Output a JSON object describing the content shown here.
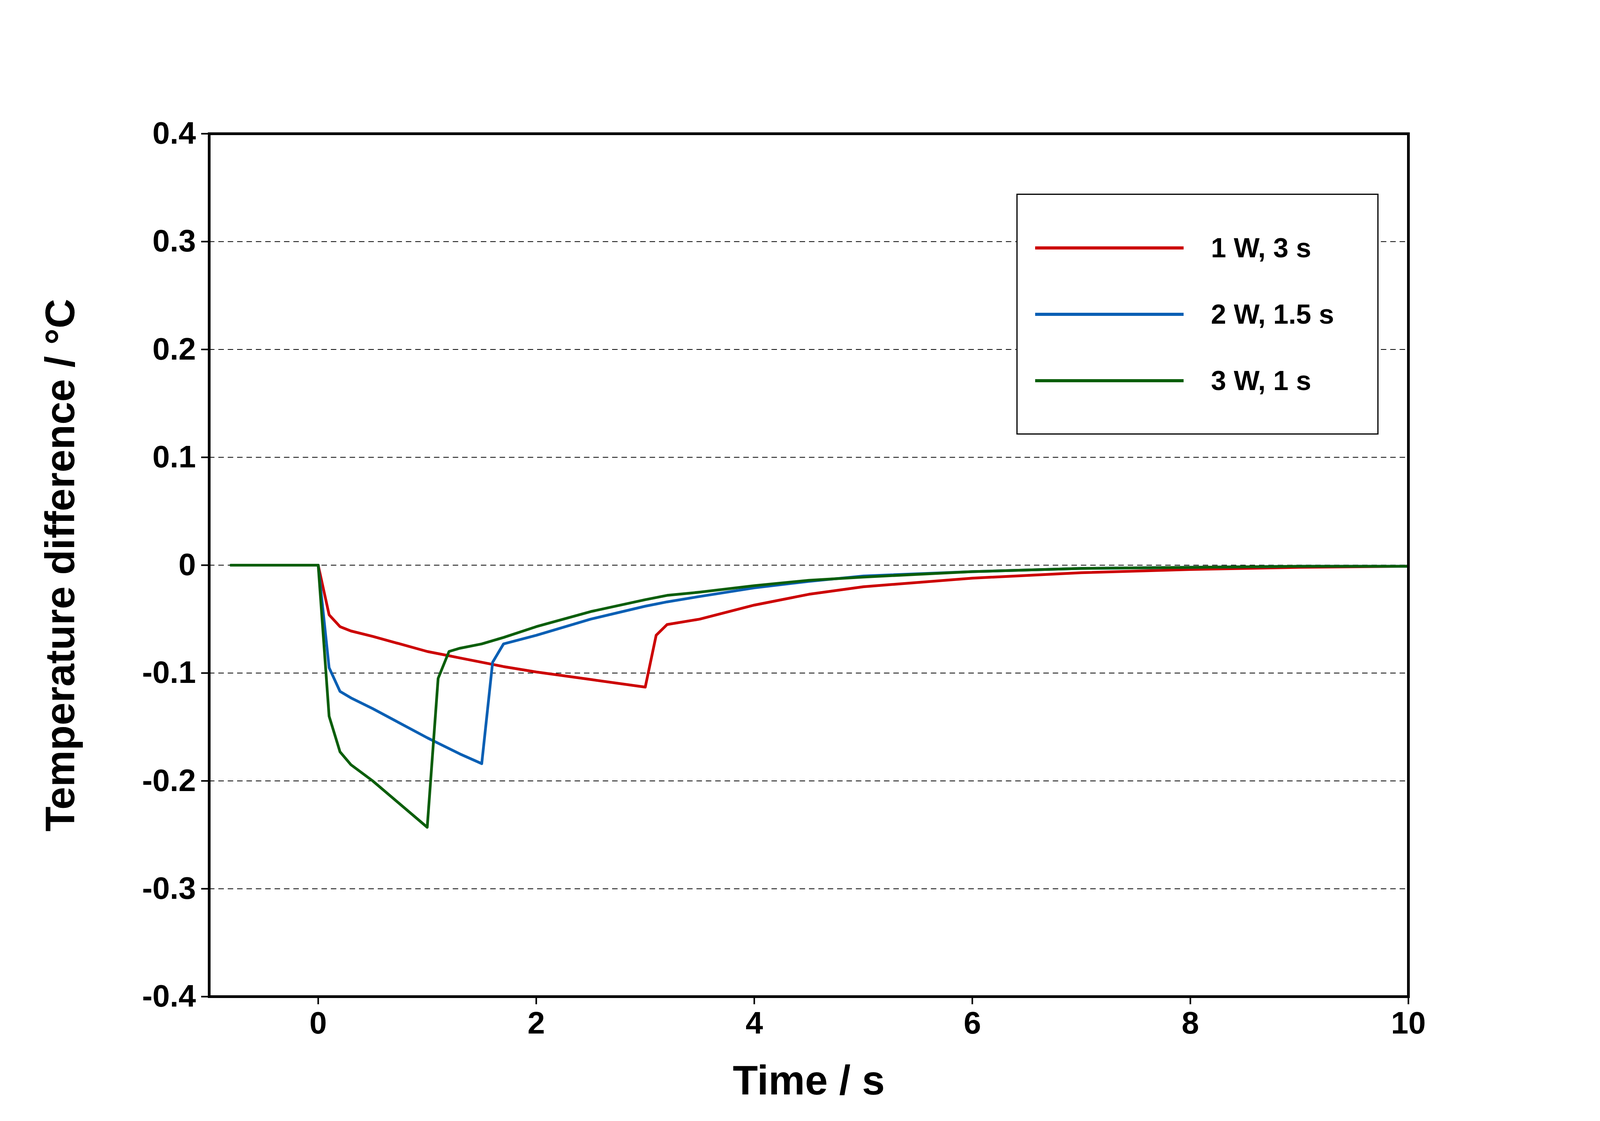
{
  "chart_data": {
    "type": "line",
    "xlabel": "Time / s",
    "ylabel": "Temperature difference / °C",
    "x": [
      -0.8,
      0,
      0.1,
      0.2,
      0.3,
      0.5,
      1,
      1.1,
      1.2,
      1.3,
      1.5,
      1.6,
      1.7,
      2,
      2.5,
      3,
      3.1,
      3.2,
      3.5,
      4,
      4.5,
      5,
      6,
      7,
      8,
      9,
      10
    ],
    "series": [
      {
        "name": "1 W, 3 s",
        "color": "#cc0000",
        "values": [
          0,
          0,
          -0.046,
          -0.057,
          -0.061,
          -0.066,
          -0.08,
          -0.082,
          -0.084,
          -0.086,
          -0.09,
          -0.092,
          -0.094,
          -0.099,
          -0.106,
          -0.113,
          -0.065,
          -0.055,
          -0.05,
          -0.037,
          -0.027,
          -0.02,
          -0.012,
          -0.007,
          -0.004,
          -0.002,
          -0.001
        ]
      },
      {
        "name": "2 W, 1.5 s",
        "color": "#0a5fb4",
        "values": [
          0,
          0,
          -0.095,
          -0.117,
          -0.123,
          -0.133,
          -0.16,
          -0.165,
          -0.17,
          -0.175,
          -0.184,
          -0.09,
          -0.073,
          -0.065,
          -0.05,
          -0.038,
          -0.036,
          -0.034,
          -0.029,
          -0.021,
          -0.015,
          -0.01,
          -0.006,
          -0.003,
          -0.002,
          -0.001,
          -0.001
        ]
      },
      {
        "name": "3 W, 1 s",
        "color": "#0b5e0b",
        "values": [
          0,
          0,
          -0.14,
          -0.173,
          -0.185,
          -0.2,
          -0.243,
          -0.105,
          -0.08,
          -0.077,
          -0.073,
          -0.07,
          -0.067,
          -0.057,
          -0.043,
          -0.032,
          -0.03,
          -0.028,
          -0.025,
          -0.019,
          -0.014,
          -0.011,
          -0.006,
          -0.003,
          -0.002,
          -0.001,
          -0.001
        ]
      }
    ],
    "xlim": [
      -1,
      10
    ],
    "xticks": [
      0,
      2,
      4,
      6,
      8,
      10
    ],
    "ylim": [
      -0.4,
      0.4
    ],
    "yticks": [
      -0.4,
      -0.3,
      -0.2,
      -0.1,
      0,
      0.1,
      0.2,
      0.3,
      0.4
    ],
    "grid": true,
    "legend": "top-right"
  }
}
